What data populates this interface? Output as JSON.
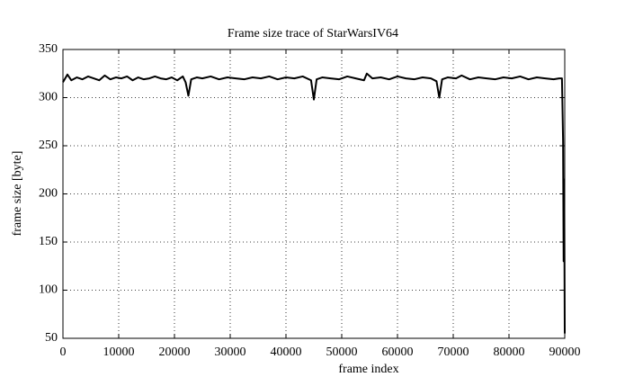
{
  "chart_data": {
    "type": "line",
    "title": "Frame size trace of StarWarsIV64",
    "x_label": "frame index",
    "y_label": "frame size [byte]",
    "x": [
      0,
      800,
      1500,
      2500,
      3500,
      4500,
      5500,
      6500,
      7500,
      8500,
      9500,
      10500,
      11500,
      12500,
      13500,
      14500,
      15500,
      16500,
      17500,
      18500,
      19500,
      20500,
      21500,
      22000,
      22500,
      23000,
      24000,
      25000,
      26500,
      28000,
      29500,
      31000,
      32500,
      34000,
      35500,
      37000,
      38500,
      40000,
      41500,
      43000,
      44500,
      45000,
      45500,
      46500,
      48000,
      49500,
      51000,
      52500,
      54000,
      54500,
      55500,
      57000,
      58500,
      60000,
      61500,
      63000,
      64500,
      66000,
      67000,
      67500,
      68000,
      69000,
      70500,
      71500,
      73000,
      74500,
      76000,
      77500,
      79000,
      80500,
      82000,
      83500,
      85000,
      86500,
      88000,
      89000,
      89500,
      89700,
      89800,
      89900,
      90000
    ],
    "series": [
      {
        "name": "frame size",
        "color": "#000000",
        "values": [
          316,
          324,
          318,
          321,
          319,
          322,
          320,
          318,
          323,
          319,
          321,
          320,
          322,
          318,
          321,
          319,
          320,
          322,
          320,
          319,
          321,
          318,
          322,
          316,
          302,
          319,
          321,
          320,
          322,
          319,
          321,
          320,
          319,
          321,
          320,
          322,
          319,
          321,
          320,
          322,
          318,
          298,
          319,
          321,
          320,
          319,
          322,
          320,
          318,
          325,
          320,
          321,
          319,
          322,
          320,
          319,
          321,
          320,
          317,
          300,
          319,
          321,
          320,
          323,
          319,
          321,
          320,
          319,
          321,
          320,
          322,
          319,
          321,
          320,
          319,
          320,
          320,
          255,
          130,
          215,
          55
        ]
      }
    ],
    "xlim": [
      0,
      90000
    ],
    "ylim": [
      50,
      350
    ],
    "xticks": [
      0,
      10000,
      20000,
      30000,
      40000,
      50000,
      60000,
      70000,
      80000,
      90000
    ],
    "yticks": [
      50,
      100,
      150,
      200,
      250,
      300,
      350
    ],
    "grid": true
  }
}
